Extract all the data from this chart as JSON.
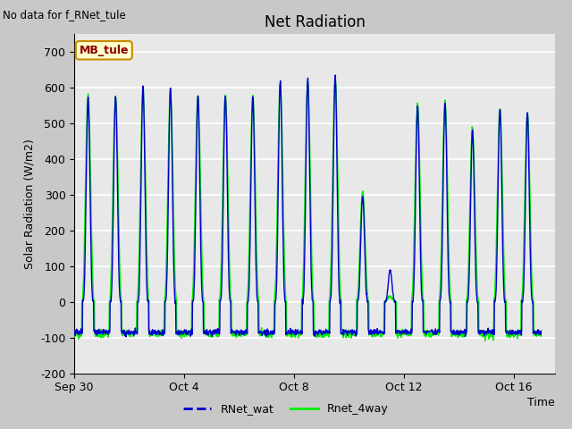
{
  "title": "Net Radiation",
  "top_left_text": "No data for f_RNet_tule",
  "xlabel": "Time",
  "ylabel": "Solar Radiation (W/m2)",
  "ylim": [
    -200,
    750
  ],
  "yticks": [
    -200,
    -100,
    0,
    100,
    200,
    300,
    400,
    500,
    600,
    700
  ],
  "xtick_labels": [
    "Sep 30",
    "Oct 4",
    "Oct 8",
    "Oct 12",
    "Oct 16"
  ],
  "xtick_positions": [
    0,
    4,
    8,
    12,
    16
  ],
  "xlim": [
    0,
    17.5
  ],
  "plot_bg_color": "#e8e8e8",
  "fig_bg_color": "#c8c8c8",
  "line1_color": "#0000cc",
  "line2_color": "#00ee00",
  "legend_labels": [
    "RNet_wat",
    "Rnet_4way"
  ],
  "annotation_text": "MB_tule",
  "n_days": 17,
  "pts_per_day": 96,
  "night_blue": -85,
  "night_green": -90,
  "peaks_blue": [
    570,
    575,
    603,
    600,
    575,
    580,
    575,
    620,
    625,
    635,
    320,
    90,
    550,
    560,
    480,
    540,
    530
  ],
  "peaks_green": [
    580,
    578,
    590,
    588,
    578,
    580,
    578,
    612,
    616,
    628,
    330,
    15,
    555,
    563,
    488,
    543,
    527
  ]
}
